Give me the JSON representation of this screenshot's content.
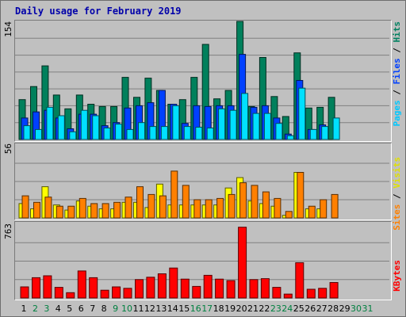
{
  "title": "Daily usage for February 2019",
  "colors": {
    "hits": "#00805c",
    "files": "#0040ff",
    "pages": "#00e0ff",
    "visits": "#ffff00",
    "sites": "#ff8000",
    "kbytes": "#ff0000",
    "weekday_label": "#000000",
    "weekend_label": "#008040"
  },
  "right_labels": {
    "top": [
      {
        "text": "Pages",
        "color": "#00c8ff"
      },
      {
        "text": " / ",
        "color": "#000000"
      },
      {
        "text": "Files",
        "color": "#0040ff"
      },
      {
        "text": " / ",
        "color": "#000000"
      },
      {
        "text": "Hits",
        "color": "#008060"
      }
    ],
    "mid": [
      {
        "text": "Sites",
        "color": "#ff8000"
      },
      {
        "text": " / ",
        "color": "#000000"
      },
      {
        "text": "Visits",
        "color": "#e0e000"
      }
    ],
    "bot": [
      {
        "text": "KBytes",
        "color": "#ff0000"
      }
    ]
  },
  "chart_data": [
    {
      "type": "bar",
      "panel": "hits-files-pages",
      "ymax_label": "154",
      "ylim": [
        0,
        154
      ],
      "categories": [
        "1",
        "2",
        "3",
        "4",
        "5",
        "6",
        "7",
        "8",
        "9",
        "10",
        "11",
        "12",
        "13",
        "14",
        "15",
        "16",
        "17",
        "18",
        "19",
        "20",
        "21",
        "22",
        "23",
        "24",
        "25",
        "26",
        "27",
        "28",
        "29",
        "30",
        "31"
      ],
      "weekend": [
        false,
        true,
        true,
        false,
        false,
        false,
        false,
        false,
        true,
        true,
        false,
        false,
        false,
        false,
        false,
        true,
        true,
        false,
        false,
        false,
        false,
        false,
        true,
        true,
        false,
        false,
        false,
        false,
        false,
        true,
        true
      ],
      "series": [
        {
          "name": "Hits",
          "values": [
            52,
            69,
            96,
            58,
            40,
            58,
            46,
            43,
            43,
            81,
            55,
            80,
            64,
            46,
            52,
            81,
            124,
            53,
            64,
            154,
            43,
            107,
            56,
            30,
            113,
            41,
            42,
            55,
            0,
            0,
            0
          ]
        },
        {
          "name": "Files",
          "values": [
            28,
            36,
            38,
            28,
            14,
            33,
            33,
            18,
            22,
            41,
            44,
            48,
            64,
            46,
            21,
            44,
            43,
            44,
            44,
            111,
            42,
            44,
            28,
            7,
            77,
            13,
            19,
            0,
            0,
            0,
            0
          ]
        },
        {
          "name": "Pages",
          "values": [
            18,
            13,
            42,
            31,
            10,
            38,
            31,
            15,
            20,
            13,
            22,
            17,
            17,
            44,
            17,
            16,
            15,
            40,
            38,
            60,
            34,
            34,
            21,
            5,
            67,
            13,
            17,
            28,
            0,
            0,
            0
          ]
        }
      ]
    },
    {
      "type": "bar",
      "panel": "visits-sites",
      "ymax_label": "56",
      "ylim": [
        0,
        56
      ],
      "categories": [
        "1",
        "2",
        "3",
        "4",
        "5",
        "6",
        "7",
        "8",
        "9",
        "10",
        "11",
        "12",
        "13",
        "14",
        "15",
        "16",
        "17",
        "18",
        "19",
        "20",
        "21",
        "22",
        "23",
        "24",
        "25",
        "26",
        "27",
        "28",
        "29",
        "30",
        "31"
      ],
      "series": [
        {
          "name": "Visits",
          "values": [
            11,
            7,
            24,
            10,
            6,
            13,
            9,
            7,
            7,
            12,
            12,
            8,
            26,
            10,
            10,
            10,
            10,
            10,
            23,
            31,
            13,
            11,
            9,
            2,
            35,
            7,
            7,
            0,
            0,
            0,
            0
          ]
        },
        {
          "name": "Sites",
          "values": [
            17,
            12,
            16,
            9,
            9,
            15,
            11,
            11,
            12,
            16,
            24,
            18,
            17,
            36,
            25,
            14,
            14,
            15,
            18,
            27,
            25,
            20,
            15,
            5,
            35,
            9,
            14,
            18,
            0,
            0,
            0
          ]
        }
      ]
    },
    {
      "type": "bar",
      "panel": "kbytes",
      "ymax_label": "763",
      "ylim": [
        0,
        763
      ],
      "categories": [
        "1",
        "2",
        "3",
        "4",
        "5",
        "6",
        "7",
        "8",
        "9",
        "10",
        "11",
        "12",
        "13",
        "14",
        "15",
        "16",
        "17",
        "18",
        "19",
        "20",
        "21",
        "22",
        "23",
        "24",
        "25",
        "26",
        "27",
        "28",
        "29",
        "30",
        "31"
      ],
      "series": [
        {
          "name": "KBytes",
          "values": [
            115,
            210,
            230,
            110,
            55,
            280,
            210,
            80,
            115,
            100,
            190,
            215,
            250,
            310,
            195,
            120,
            235,
            195,
            180,
            733,
            190,
            200,
            110,
            40,
            365,
            90,
            100,
            160,
            0,
            0,
            0
          ]
        }
      ]
    }
  ]
}
